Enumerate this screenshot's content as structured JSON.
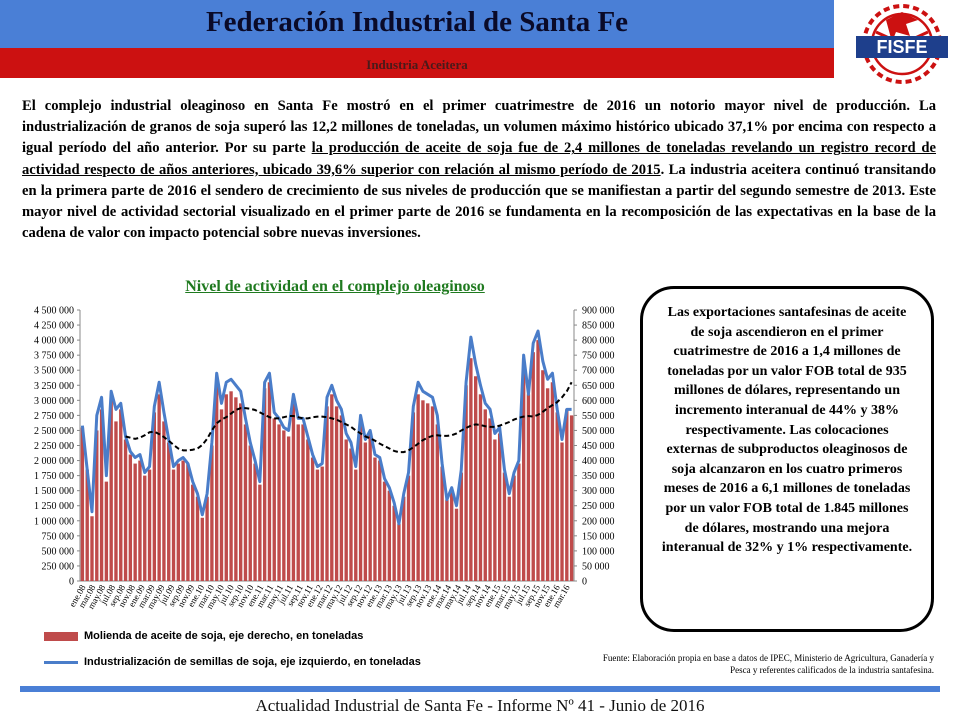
{
  "header": {
    "title": "Federación  Industrial de Santa Fe",
    "subtitle": "Industria Aceitera",
    "logo_text": "FISFE"
  },
  "intro": {
    "p1": "El complejo industrial oleaginoso en Santa Fe mostró en el primer cuatrimestre de 2016 un notorio mayor nivel de producción. La industrialización de granos de soja superó las 12,2 millones de toneladas, un volumen máximo histórico ubicado 37,1% por encima con respecto a igual período del año anterior. Por su parte ",
    "p2_underlined": "la producción de aceite de soja fue de 2,4 millones de toneladas revelando un registro record de actividad respecto de años anteriores, ubicado 39,6% superior con relación al mismo período de 2015",
    "p3": ". La industria aceitera continuó transitando en la primera parte de 2016 el sendero de crecimiento de sus niveles de producción que se manifiestan a partir del segundo semestre de 2013. Este mayor nivel de actividad sectorial visualizado en el primer parte de 2016 se fundamenta en la recomposición de las expectativas en la base de la cadena de valor con impacto potencial sobre nuevas inversiones."
  },
  "chart_title": "Nivel de actividad en el complejo oleaginoso",
  "legend": {
    "bars": "Molienda de aceite de soja, eje derecho, en toneladas",
    "line": "Industrialización de semillas de soja, eje izquierdo, en toneladas"
  },
  "callout": "Las exportaciones santafesinas de aceite de soja ascendieron en el primer cuatrimestre de 2016 a 1,4 millones de toneladas por un valor FOB total de 935 millones de dólares, representando un incremento interanual de 44% y 38% respectivamente. Las colocaciones externas de subproductos oleaginosos de soja alcanzaron en los cuatro primeros meses de 2016 a 6,1 millones de toneladas por un valor FOB total de 1.845 millones de dólares, mostrando una mejora interanual de 32% y 1% respectivamente.",
  "source": "Fuente: Elaboración propia en base a datos de IPEC, Ministerio de Agricultura, Ganadería y Pesca y referentes calificados de la industria santafesina.",
  "footer": "Actualidad Industrial de Santa Fe - Informe Nº 41 - Junio de 2016",
  "colors": {
    "bars": "#bf4b4b",
    "line": "#4a7dc9",
    "trend": "#000000",
    "header_blue": "#4a7fd6",
    "header_red": "#cc1111",
    "chart_title": "#1f7a1f"
  },
  "chart_data": {
    "type": "bar",
    "x_labels": [
      "ene.08",
      "mar.08",
      "may.08",
      "jul.08",
      "sep.08",
      "nov.08",
      "ene.09",
      "mar.09",
      "may.09",
      "jul.09",
      "sep.09",
      "nov.09",
      "ene.10",
      "mar.10",
      "may.10",
      "jul.10",
      "sep.10",
      "nov.10",
      "ene.11",
      "mar.11",
      "may.11",
      "jul.11",
      "sep.11",
      "nov.11",
      "ene.12",
      "mar.12",
      "may.12",
      "jul.12",
      "sep.12",
      "nov.12",
      "ene.13",
      "mar.13",
      "may.13",
      "jul.13",
      "sep.13",
      "nov.13",
      "ene.14",
      "mar.14",
      "may.14",
      "jul.14",
      "sep.14",
      "nov.14",
      "ene.15",
      "mar.15",
      "may.15",
      "jul.15",
      "sep.15",
      "nov.15",
      "ene.16",
      "mar.16"
    ],
    "left_axis": {
      "min": 0,
      "max": 4500000,
      "ticks": [
        "0",
        "250 000",
        "500 000",
        "750 000",
        "1 000 000",
        "1 250 000",
        "1 500 000",
        "1 750 000",
        "2 000 000",
        "2 250 000",
        "2 500 000",
        "2 750 000",
        "3 000 000",
        "3 250 000",
        "3 500 000",
        "3 750 000",
        "4 000 000",
        "4 250 000",
        "4 500 000"
      ]
    },
    "right_axis": {
      "min": 0,
      "max": 900000,
      "ticks": [
        "0",
        "50 000",
        "100 000",
        "150 000",
        "200 000",
        "250 000",
        "300 000",
        "350 000",
        "400 000",
        "450 000",
        "500 000",
        "550 000",
        "600 000",
        "650 000",
        "700 000",
        "750 000",
        "800 000",
        "850 000",
        "900 000"
      ]
    },
    "series": [
      {
        "name": "Molienda de aceite de soja, eje derecho, en toneladas",
        "type": "bar",
        "axis": "right",
        "values": [
          510000,
          370000,
          215000,
          500000,
          570000,
          330000,
          610000,
          530000,
          570000,
          470000,
          420000,
          390000,
          400000,
          350000,
          370000,
          560000,
          620000,
          530000,
          460000,
          370000,
          390000,
          400000,
          390000,
          320000,
          280000,
          210000,
          280000,
          450000,
          650000,
          570000,
          620000,
          630000,
          610000,
          590000,
          520000,
          450000,
          390000,
          320000,
          640000,
          660000,
          540000,
          520000,
          500000,
          480000,
          590000,
          520000,
          520000,
          470000,
          410000,
          370000,
          380000,
          580000,
          620000,
          580000,
          550000,
          470000,
          440000,
          370000,
          520000,
          460000,
          490000,
          410000,
          400000,
          330000,
          300000,
          250000,
          190000,
          280000,
          350000,
          560000,
          620000,
          600000,
          590000,
          580000,
          520000,
          380000,
          270000,
          300000,
          240000,
          360000,
          650000,
          740000,
          680000,
          620000,
          570000,
          540000,
          470000,
          490000,
          360000,
          280000,
          350000,
          390000,
          740000,
          620000,
          760000,
          800000,
          700000,
          640000,
          660000,
          560000,
          460000,
          570000,
          550000
        ]
      },
      {
        "name": "Industrialización de semillas de soja, eje izquierdo, en toneladas",
        "type": "line",
        "axis": "left",
        "values": [
          2580000,
          1850000,
          1150000,
          2750000,
          3050000,
          1750000,
          3150000,
          2850000,
          2950000,
          2400000,
          2150000,
          2050000,
          2100000,
          1800000,
          1900000,
          2900000,
          3300000,
          2800000,
          2350000,
          1900000,
          2000000,
          2050000,
          1950000,
          1650000,
          1450000,
          1100000,
          1450000,
          2300000,
          3450000,
          2950000,
          3300000,
          3350000,
          3250000,
          3150000,
          2700000,
          2300000,
          2000000,
          1650000,
          3300000,
          3450000,
          2800000,
          2700000,
          2550000,
          2500000,
          3100000,
          2700000,
          2700000,
          2400000,
          2100000,
          1900000,
          1950000,
          3050000,
          3250000,
          3000000,
          2850000,
          2450000,
          2300000,
          1900000,
          2750000,
          2350000,
          2500000,
          2100000,
          2050000,
          1700000,
          1550000,
          1300000,
          950000,
          1450000,
          1800000,
          2900000,
          3300000,
          3150000,
          3100000,
          3050000,
          2750000,
          1950000,
          1350000,
          1550000,
          1250000,
          1850000,
          3300000,
          4050000,
          3600000,
          3250000,
          2950000,
          2850000,
          2450000,
          2550000,
          1850000,
          1450000,
          1800000,
          2000000,
          3750000,
          3100000,
          3950000,
          4150000,
          3650000,
          3350000,
          3450000,
          2850000,
          2350000,
          2850000,
          2850000
        ]
      },
      {
        "name": "",
        "type": "line",
        "axis": "left",
        "style": "dashed",
        "values": [
          null,
          null,
          null,
          null,
          null,
          null,
          null,
          null,
          null,
          2400000,
          2380000,
          2360000,
          2380000,
          2420000,
          2470000,
          2480000,
          2440000,
          2390000,
          2330000,
          2260000,
          2200000,
          2170000,
          2170000,
          2180000,
          2200000,
          2260000,
          2360000,
          2500000,
          2620000,
          2680000,
          2720000,
          2780000,
          2840000,
          2870000,
          2870000,
          2860000,
          2840000,
          2800000,
          2760000,
          2720000,
          2700000,
          2700000,
          2720000,
          2740000,
          2740000,
          2720000,
          2700000,
          2700000,
          2720000,
          2730000,
          2730000,
          2720000,
          2700000,
          2680000,
          2640000,
          2600000,
          2560000,
          2500000,
          2450000,
          2400000,
          2370000,
          2330000,
          2280000,
          2240000,
          2200000,
          2160000,
          2140000,
          2140000,
          2170000,
          2220000,
          2280000,
          2340000,
          2380000,
          2410000,
          2420000,
          2410000,
          2410000,
          2420000,
          2450000,
          2500000,
          2540000,
          2580000,
          2600000,
          2590000,
          2570000,
          2560000,
          2560000,
          2580000,
          2610000,
          2640000,
          2680000,
          2710000,
          2730000,
          2740000,
          2730000,
          2760000,
          2810000,
          2870000,
          2920000,
          2970000,
          3050000,
          3150000,
          3300000
        ]
      }
    ]
  }
}
